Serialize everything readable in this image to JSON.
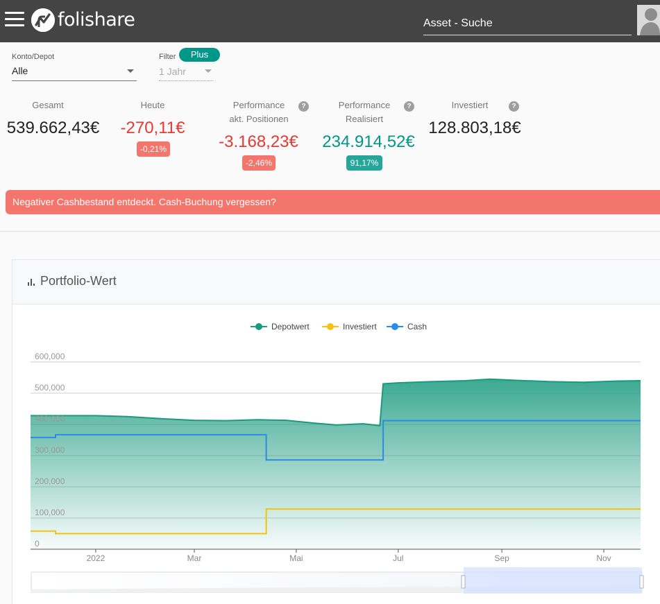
{
  "header": {
    "brand": "folishare",
    "search_placeholder": "Asset - Suche"
  },
  "filters": {
    "account_label": "Konto/Depot",
    "account_value": "Alle",
    "filter_label": "Filter",
    "filter_value": "1 Jahr",
    "plan_badge": "Plus"
  },
  "kpis": {
    "total": {
      "label": "Gesamt",
      "value": "539.662,43€"
    },
    "today": {
      "label": "Heute",
      "value": "-270,11€",
      "badge": "-0,21%"
    },
    "perf_open": {
      "label_1": "Performance",
      "label_2": "akt. Positionen",
      "value": "-3.168,23€",
      "badge": "-2,46%"
    },
    "perf_realized": {
      "label_1": "Performance",
      "label_2": "Realisiert",
      "value": "234.914,52€",
      "badge": "91,17%"
    },
    "invested": {
      "label": "Investiert",
      "value": "128.803,18€"
    },
    "help_icon": "?"
  },
  "alert": {
    "text": "Negativer Cashbestand entdeckt. Cash-Buchung vergessen?"
  },
  "colors": {
    "header_bg": "#444444",
    "accent": "#009688",
    "negative": "#e53935",
    "alert_bg": "#f4756b",
    "depotwert": "#1a9a7e",
    "investiert": "#f5c211",
    "cash": "#2a8ce6"
  },
  "chart_card": {
    "title": "Portfolio-Wert"
  },
  "chart_data": {
    "type": "area",
    "legend_position": "top-center",
    "ylim": [
      0,
      600000
    ],
    "yticks": [
      "600,000",
      "500,000",
      "400,000",
      "300,000",
      "200,000",
      "100,000",
      "0"
    ],
    "ytick_values": [
      600000,
      500000,
      400000,
      300000,
      200000,
      100000,
      0
    ],
    "x_range": [
      "2021-11-23",
      "2022-11-23"
    ],
    "xticks": [
      {
        "label": "2022",
        "date": "2022-01-01"
      },
      {
        "label": "Mar",
        "date": "2022-03-01"
      },
      {
        "label": "Mai",
        "date": "2022-05-01"
      },
      {
        "label": "Jul",
        "date": "2022-07-01"
      },
      {
        "label": "Sep",
        "date": "2022-09-01"
      },
      {
        "label": "Nov",
        "date": "2022-11-01"
      }
    ],
    "series": [
      {
        "name": "Depotwert",
        "x": [
          "2021-11-23",
          "2021-12-10",
          "2022-01-01",
          "2022-01-20",
          "2022-02-10",
          "2022-03-01",
          "2022-03-20",
          "2022-04-08",
          "2022-04-25",
          "2022-05-10",
          "2022-05-25",
          "2022-06-10",
          "2022-06-20",
          "2022-06-22",
          "2022-07-01",
          "2022-07-20",
          "2022-08-10",
          "2022-08-25",
          "2022-09-10",
          "2022-09-30",
          "2022-10-20",
          "2022-11-10",
          "2022-11-23"
        ],
        "values": [
          428000,
          428000,
          428000,
          425000,
          418000,
          413000,
          412000,
          415000,
          413000,
          405000,
          398000,
          402000,
          396000,
          530000,
          533000,
          537000,
          540000,
          545000,
          541000,
          537000,
          535000,
          539000,
          540000
        ]
      },
      {
        "name": "Investiert",
        "x": [
          "2021-11-23",
          "2021-12-08",
          "2021-12-08",
          "2022-04-13",
          "2022-04-13",
          "2022-11-23"
        ],
        "values": [
          58000,
          58000,
          50000,
          50000,
          128800,
          128800
        ]
      },
      {
        "name": "Cash",
        "x": [
          "2021-11-23",
          "2021-12-08",
          "2021-12-08",
          "2022-04-13",
          "2022-04-13",
          "2022-06-22",
          "2022-06-22",
          "2022-11-23"
        ],
        "values": [
          358000,
          358000,
          367000,
          367000,
          286000,
          286000,
          412000,
          412000
        ]
      }
    ]
  }
}
